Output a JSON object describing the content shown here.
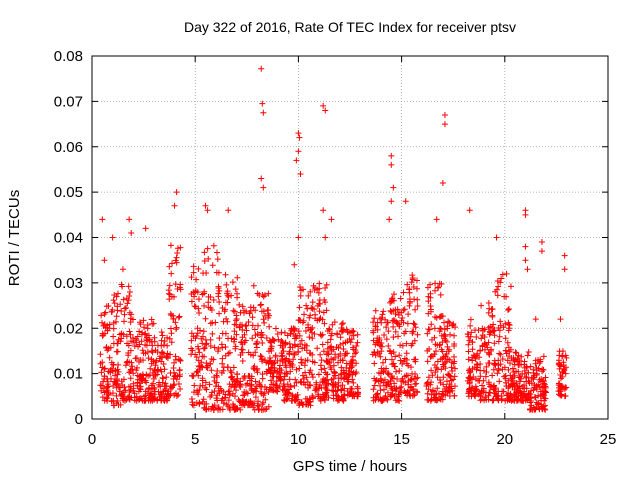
{
  "chart_data": {
    "type": "scatter",
    "title": "Day 322 of 2016, Rate Of TEC Index for receiver ptsv",
    "xlabel": "GPS time / hours",
    "ylabel": "ROTI / TECUs",
    "xlim": [
      0,
      25
    ],
    "ylim": [
      0,
      0.08
    ],
    "x_ticks": [
      "0",
      "5",
      "10",
      "15",
      "20",
      "25"
    ],
    "y_ticks": [
      "0",
      "0.01",
      "0.02",
      "0.03",
      "0.04",
      "0.05",
      "0.06",
      "0.07",
      "0.08"
    ],
    "grid": true,
    "marker": "+",
    "color": "#ff0000",
    "clusters": [
      {
        "x": [
          0.4,
          0.9
        ],
        "y_range": [
          0.004,
          0.025
        ]
      },
      {
        "x": [
          0.9,
          1.4
        ],
        "y_range": [
          0.003,
          0.028
        ]
      },
      {
        "x": [
          1.4,
          2.0
        ],
        "y_range": [
          0.004,
          0.03
        ]
      },
      {
        "x": [
          2.0,
          3.0
        ],
        "y_range": [
          0.004,
          0.022
        ]
      },
      {
        "x": [
          3.0,
          3.7
        ],
        "y_range": [
          0.004,
          0.02
        ]
      },
      {
        "x": [
          3.7,
          4.3
        ],
        "y_range": [
          0.005,
          0.04
        ]
      },
      {
        "x": [
          4.8,
          5.4
        ],
        "y_range": [
          0.003,
          0.035
        ]
      },
      {
        "x": [
          5.4,
          6.2
        ],
        "y_range": [
          0.002,
          0.04
        ]
      },
      {
        "x": [
          6.2,
          7.2
        ],
        "y_range": [
          0.002,
          0.032
        ]
      },
      {
        "x": [
          7.2,
          7.8
        ],
        "y_range": [
          0.003,
          0.025
        ]
      },
      {
        "x": [
          7.8,
          8.6
        ],
        "y_range": [
          0.002,
          0.03
        ]
      },
      {
        "x": [
          8.6,
          9.3
        ],
        "y_range": [
          0.006,
          0.02
        ]
      },
      {
        "x": [
          9.3,
          10.0
        ],
        "y_range": [
          0.004,
          0.02
        ]
      },
      {
        "x": [
          10.0,
          10.6
        ],
        "y_range": [
          0.003,
          0.03
        ]
      },
      {
        "x": [
          10.6,
          11.4
        ],
        "y_range": [
          0.004,
          0.03
        ]
      },
      {
        "x": [
          11.4,
          12.2
        ],
        "y_range": [
          0.004,
          0.022
        ]
      },
      {
        "x": [
          12.2,
          12.9
        ],
        "y_range": [
          0.005,
          0.02
        ]
      },
      {
        "x": [
          13.6,
          14.4
        ],
        "y_range": [
          0.004,
          0.024
        ]
      },
      {
        "x": [
          14.4,
          15.2
        ],
        "y_range": [
          0.004,
          0.028
        ]
      },
      {
        "x": [
          15.2,
          15.8
        ],
        "y_range": [
          0.005,
          0.032
        ]
      },
      {
        "x": [
          16.2,
          17.0
        ],
        "y_range": [
          0.004,
          0.03
        ]
      },
      {
        "x": [
          17.0,
          17.6
        ],
        "y_range": [
          0.005,
          0.022
        ]
      },
      {
        "x": [
          18.2,
          18.8
        ],
        "y_range": [
          0.005,
          0.022
        ]
      },
      {
        "x": [
          18.8,
          19.5
        ],
        "y_range": [
          0.004,
          0.026
        ]
      },
      {
        "x": [
          19.5,
          20.3
        ],
        "y_range": [
          0.004,
          0.032
        ]
      },
      {
        "x": [
          20.3,
          21.2
        ],
        "y_range": [
          0.004,
          0.015
        ]
      },
      {
        "x": [
          21.2,
          22.0
        ],
        "y_range": [
          0.002,
          0.014
        ]
      },
      {
        "x": [
          22.6,
          23.0
        ],
        "y_range": [
          0.005,
          0.015
        ]
      }
    ],
    "outliers": [
      {
        "x": 0.5,
        "y": 0.044
      },
      {
        "x": 0.6,
        "y": 0.035
      },
      {
        "x": 1.0,
        "y": 0.04
      },
      {
        "x": 1.5,
        "y": 0.033
      },
      {
        "x": 1.8,
        "y": 0.044
      },
      {
        "x": 1.9,
        "y": 0.041
      },
      {
        "x": 2.6,
        "y": 0.042
      },
      {
        "x": 4.0,
        "y": 0.047
      },
      {
        "x": 4.1,
        "y": 0.05
      },
      {
        "x": 5.5,
        "y": 0.047
      },
      {
        "x": 5.6,
        "y": 0.046
      },
      {
        "x": 6.6,
        "y": 0.046
      },
      {
        "x": 8.2,
        "y": 0.0772
      },
      {
        "x": 8.25,
        "y": 0.0695
      },
      {
        "x": 8.3,
        "y": 0.0675
      },
      {
        "x": 8.2,
        "y": 0.053
      },
      {
        "x": 8.3,
        "y": 0.051
      },
      {
        "x": 9.8,
        "y": 0.034
      },
      {
        "x": 10.0,
        "y": 0.063
      },
      {
        "x": 10.05,
        "y": 0.062
      },
      {
        "x": 10.0,
        "y": 0.059
      },
      {
        "x": 9.9,
        "y": 0.057
      },
      {
        "x": 10.1,
        "y": 0.054
      },
      {
        "x": 10.0,
        "y": 0.04
      },
      {
        "x": 11.2,
        "y": 0.069
      },
      {
        "x": 11.3,
        "y": 0.068
      },
      {
        "x": 11.2,
        "y": 0.046
      },
      {
        "x": 11.3,
        "y": 0.04
      },
      {
        "x": 11.6,
        "y": 0.044
      },
      {
        "x": 14.5,
        "y": 0.058
      },
      {
        "x": 14.5,
        "y": 0.056
      },
      {
        "x": 14.6,
        "y": 0.051
      },
      {
        "x": 14.5,
        "y": 0.048
      },
      {
        "x": 14.4,
        "y": 0.044
      },
      {
        "x": 15.2,
        "y": 0.048
      },
      {
        "x": 17.1,
        "y": 0.067
      },
      {
        "x": 17.1,
        "y": 0.065
      },
      {
        "x": 17.0,
        "y": 0.052
      },
      {
        "x": 16.7,
        "y": 0.044
      },
      {
        "x": 18.3,
        "y": 0.046
      },
      {
        "x": 19.6,
        "y": 0.04
      },
      {
        "x": 21.0,
        "y": 0.046
      },
      {
        "x": 21.0,
        "y": 0.045
      },
      {
        "x": 21.0,
        "y": 0.038
      },
      {
        "x": 21.0,
        "y": 0.035
      },
      {
        "x": 21.1,
        "y": 0.033
      },
      {
        "x": 21.8,
        "y": 0.039
      },
      {
        "x": 21.8,
        "y": 0.037
      },
      {
        "x": 22.9,
        "y": 0.036
      },
      {
        "x": 22.9,
        "y": 0.033
      },
      {
        "x": 22.7,
        "y": 0.022
      },
      {
        "x": 21.5,
        "y": 0.022
      }
    ]
  }
}
